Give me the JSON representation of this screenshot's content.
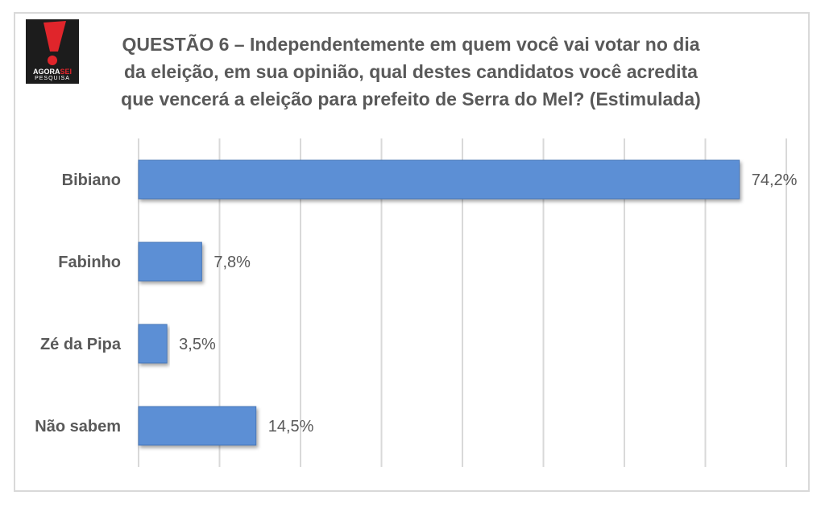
{
  "logo": {
    "brand_part1": "AGORA",
    "brand_part2": "SEI",
    "subtitle": "PESQUISA"
  },
  "title_lines": [
    "QUESTÃO 6 – Independentemente em quem você vai votar no dia",
    "da eleição, em sua opinião,  qual destes candidatos você acredita",
    "que vencerá a eleição para prefeito de Serra do Mel? (Estimulada)"
  ],
  "colors": {
    "bar": "#5b8fd5",
    "bar_edge": "#4a78b8",
    "grid": "#d9d9d9",
    "text": "#595959",
    "logo_accent": "#e0252b"
  },
  "chart_data": {
    "type": "bar",
    "orientation": "horizontal",
    "categories": [
      "Bibiano",
      "Fabinho",
      "Zé da Pipa",
      "Não sabem"
    ],
    "values": [
      74.2,
      7.8,
      3.5,
      14.5
    ],
    "value_labels": [
      "74,2%",
      "7,8%",
      "3,5%",
      "14,5%"
    ],
    "xlim": [
      0,
      80
    ],
    "grid": true,
    "legend": "none",
    "xlabel": "",
    "ylabel": ""
  }
}
